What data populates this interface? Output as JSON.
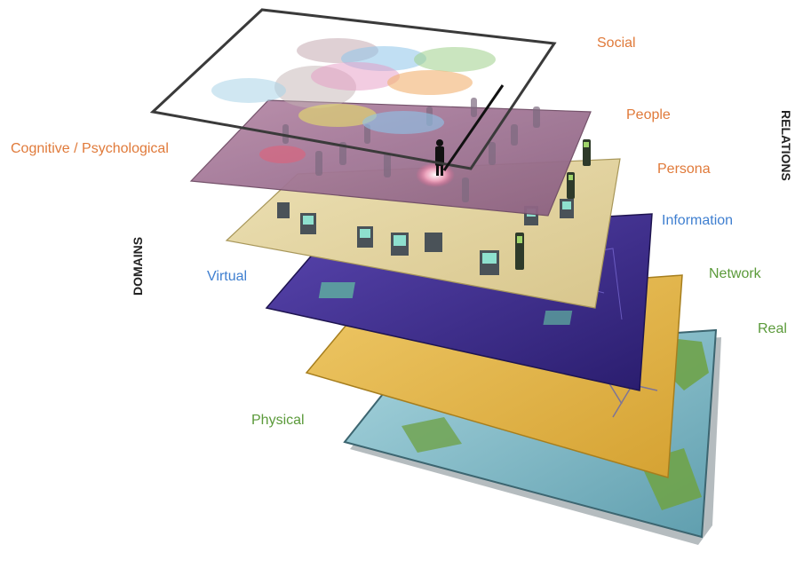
{
  "labels": {
    "social": "Social",
    "people": "People",
    "persona": "Persona",
    "information": "Information",
    "network": "Network",
    "real": "Real",
    "cognitive": "Cognitive / Psychological",
    "virtual": "Virtual",
    "physical": "Physical",
    "domains": "DOMAINS",
    "relations": "RELATIONS"
  },
  "colors": {
    "social": "#e07a3a",
    "people": "#e07a3a",
    "persona": "#e07a3a",
    "information": "#3f7fd0",
    "network": "#5b9a3a",
    "real": "#5b9a3a",
    "cognitive": "#e07a3a",
    "virtual": "#3f7fd0",
    "physical": "#5b9a3a",
    "axis": "#222222"
  },
  "layers": [
    {
      "name": "social-layer",
      "fill": "#ffffff",
      "stroke": "#333333"
    },
    {
      "name": "people-layer",
      "fill": "#9c7090"
    },
    {
      "name": "persona-layer",
      "fill": "#e2d3a0"
    },
    {
      "name": "network-layer",
      "fill": "#3b2a8c"
    },
    {
      "name": "physical-layer",
      "fill": "#e2b84c"
    },
    {
      "name": "real-layer",
      "fill": "#7fb8c4"
    }
  ]
}
